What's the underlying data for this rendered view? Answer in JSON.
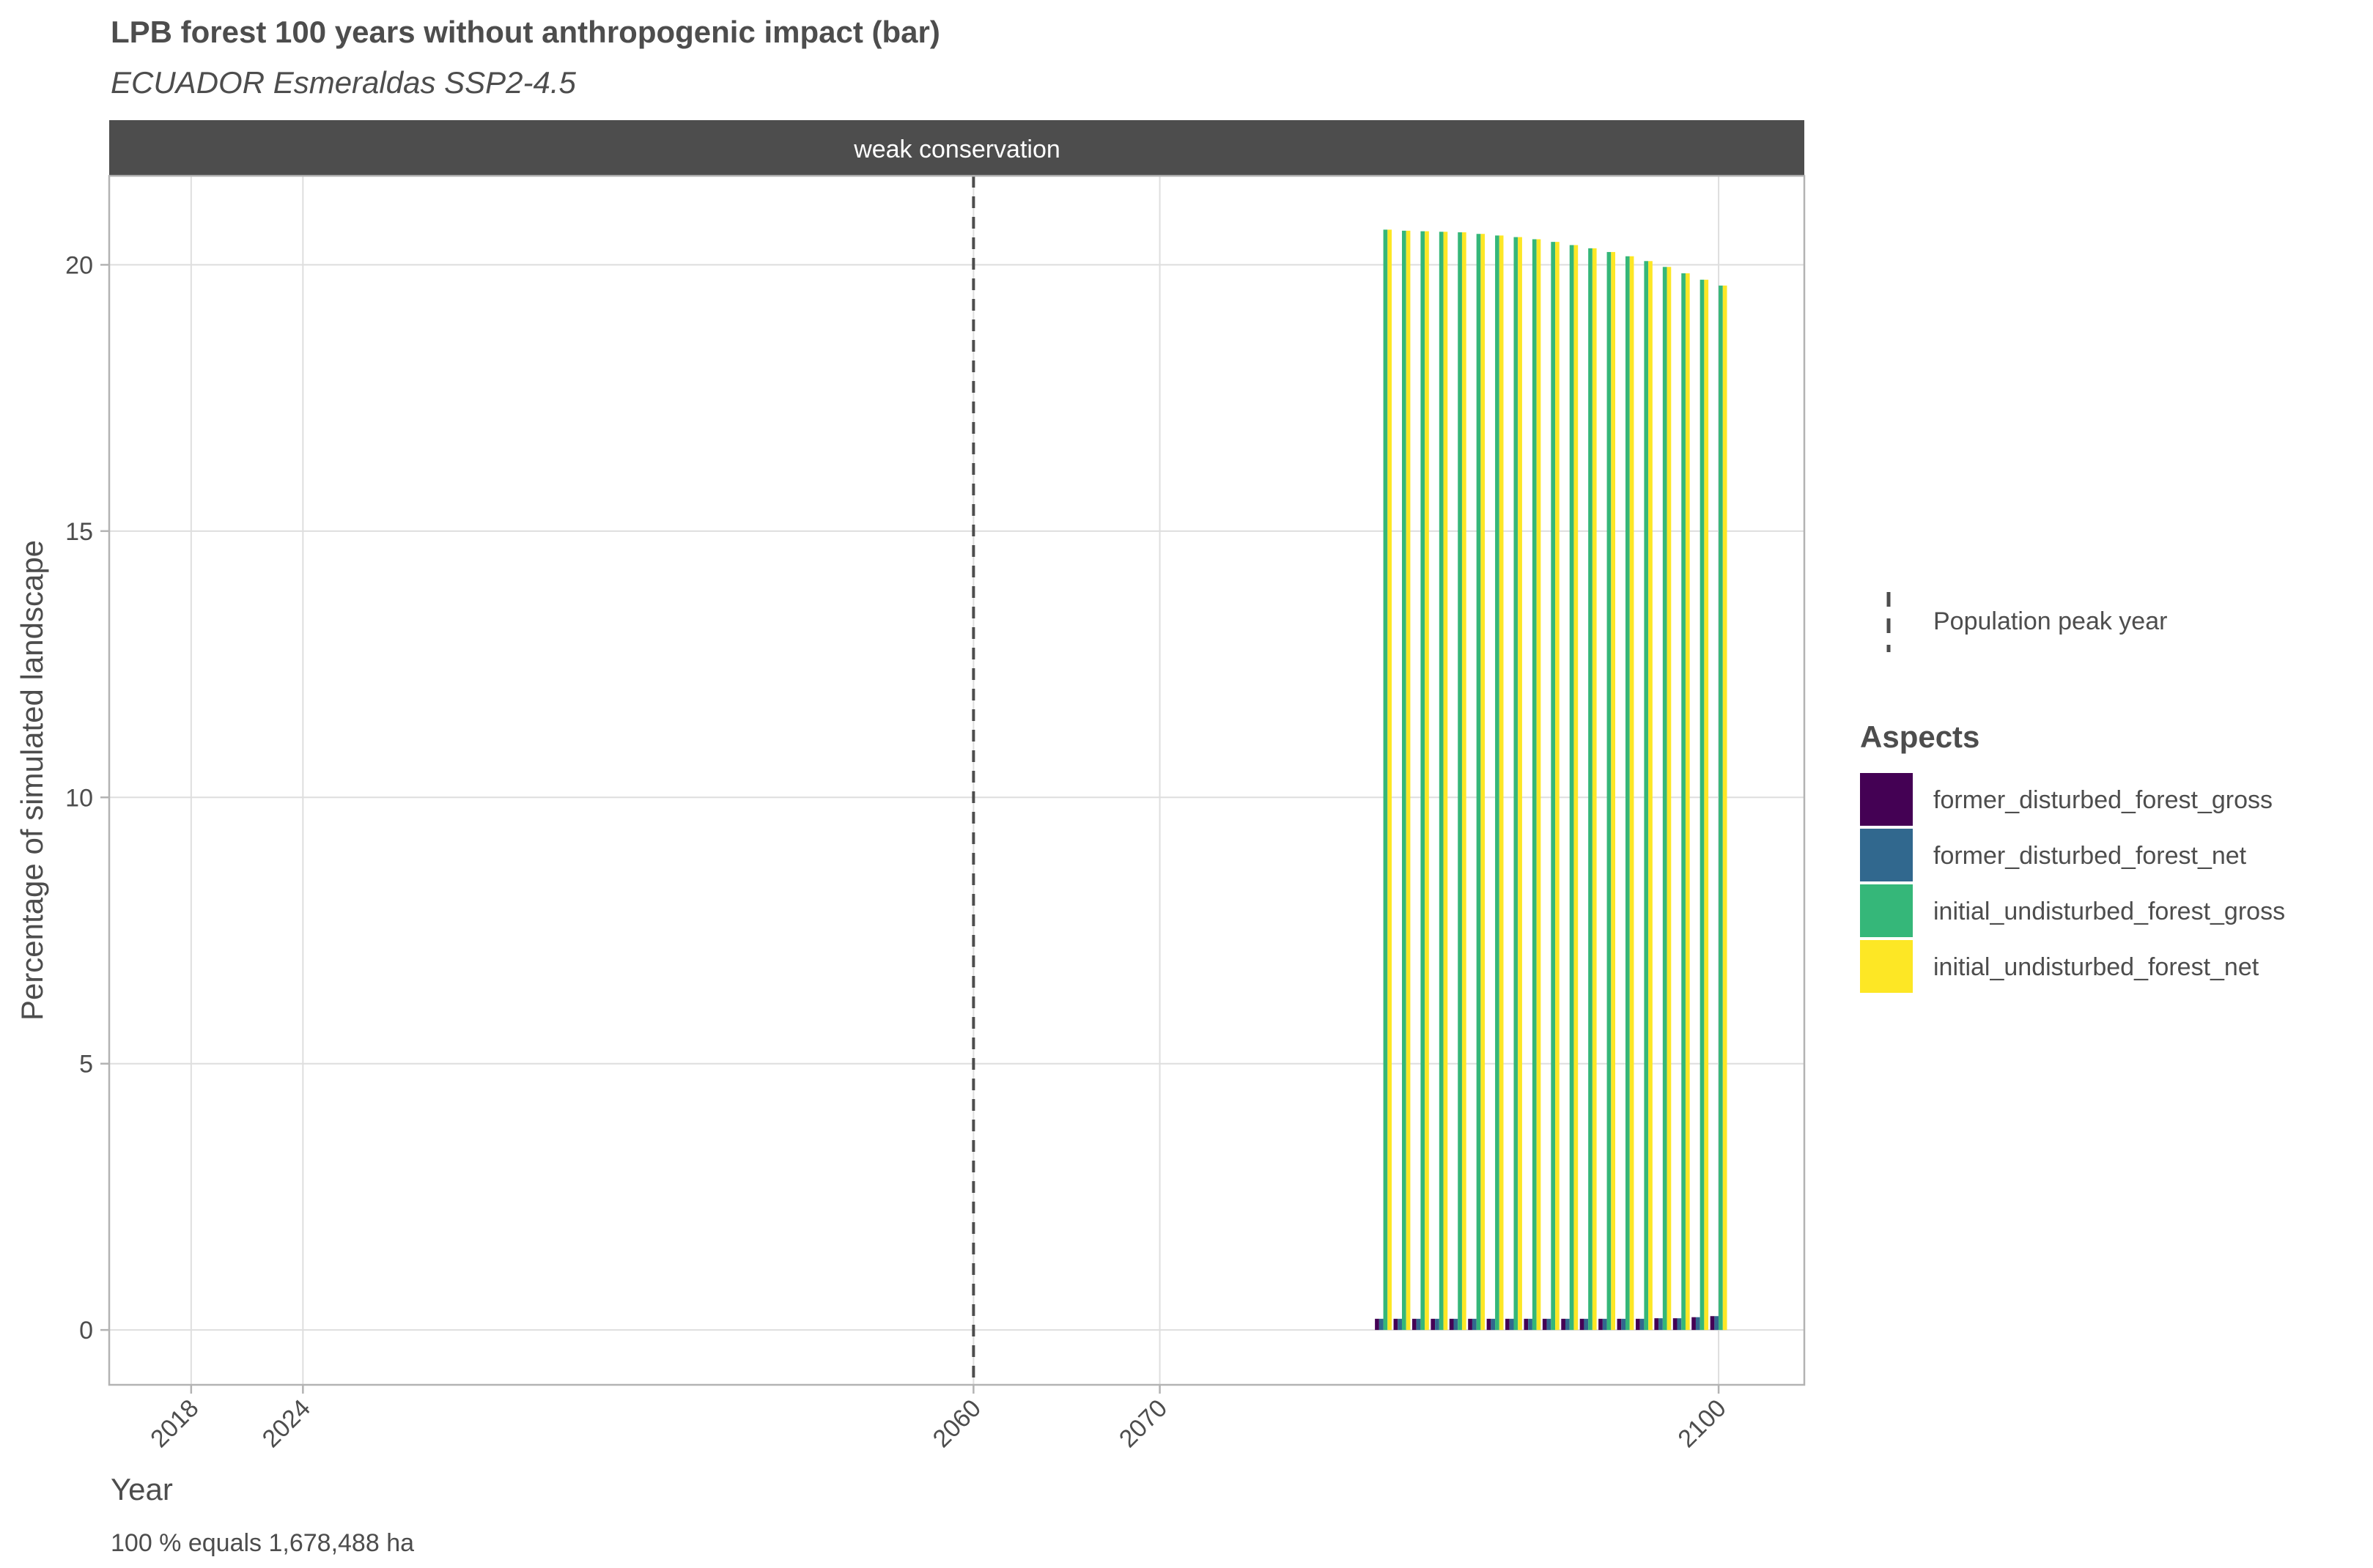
{
  "chart_data": {
    "type": "bar",
    "title": "LPB forest 100 years without anthropogenic impact (bar)",
    "subtitle": "ECUADOR Esmeraldas SSP2-4.5",
    "facet_label": "weak conservation",
    "xlabel": "Year",
    "ylabel": "Percentage of simulated landscape",
    "caption": "100 % equals 1,678,488 ha",
    "x_ticks": [
      2018,
      2024,
      2060,
      2070,
      2100
    ],
    "y_ticks": [
      0,
      5,
      10,
      15,
      20
    ],
    "xlim": [
      2013.6,
      2104.6
    ],
    "ylim": [
      -1.03,
      21.67
    ],
    "grid": true,
    "vline": {
      "x": 2060,
      "label": "Population peak year",
      "style": "dashed"
    },
    "legend_position": "right",
    "legend_title": "Aspects",
    "x": [
      2082,
      2083,
      2084,
      2085,
      2086,
      2087,
      2088,
      2089,
      2090,
      2091,
      2092,
      2093,
      2094,
      2095,
      2096,
      2097,
      2098,
      2099,
      2100
    ],
    "series": [
      {
        "name": "former_disturbed_forest_gross",
        "color": "#440154",
        "values": [
          0.21,
          0.21,
          0.21,
          0.21,
          0.21,
          0.21,
          0.21,
          0.21,
          0.21,
          0.21,
          0.21,
          0.21,
          0.21,
          0.21,
          0.21,
          0.22,
          0.22,
          0.24,
          0.26
        ]
      },
      {
        "name": "former_disturbed_forest_net",
        "color": "#31688e",
        "values": [
          0.21,
          0.21,
          0.21,
          0.21,
          0.21,
          0.21,
          0.21,
          0.21,
          0.21,
          0.21,
          0.21,
          0.21,
          0.21,
          0.21,
          0.21,
          0.22,
          0.22,
          0.24,
          0.26
        ]
      },
      {
        "name": "initial_undisturbed_forest_gross",
        "color": "#35b779",
        "values": [
          20.66,
          20.64,
          20.63,
          20.62,
          20.61,
          20.58,
          20.55,
          20.52,
          20.48,
          20.43,
          20.37,
          20.31,
          20.24,
          20.16,
          20.07,
          19.96,
          19.84,
          19.72,
          19.61
        ]
      },
      {
        "name": "initial_undisturbed_forest_net",
        "color": "#fde725",
        "values": [
          20.66,
          20.64,
          20.63,
          20.62,
          20.61,
          20.58,
          20.55,
          20.52,
          20.48,
          20.43,
          20.37,
          20.31,
          20.24,
          20.16,
          20.07,
          19.96,
          19.84,
          19.72,
          19.61
        ]
      }
    ]
  }
}
